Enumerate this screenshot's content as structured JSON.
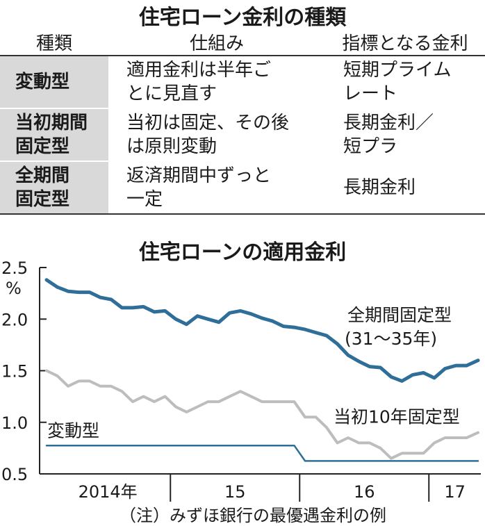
{
  "table": {
    "title": "住宅ローン金利の種類",
    "headers": [
      "種類",
      "仕組み",
      "指標となる金利"
    ],
    "rows": [
      {
        "type": [
          "変動型"
        ],
        "mechanism": [
          "適用金利は半年ご",
          "とに見直す"
        ],
        "index": [
          "短期プライム",
          "レート"
        ]
      },
      {
        "type": [
          "当初期間",
          "固定型"
        ],
        "mechanism": [
          "当初は固定、その後",
          "は原則変動"
        ],
        "index": [
          "長期金利／",
          "短プラ"
        ]
      },
      {
        "type": [
          "全期間",
          "固定型"
        ],
        "mechanism": [
          "返済期間中ずっと",
          "一定"
        ],
        "index": [
          "長期金利"
        ]
      }
    ]
  },
  "chart_data": {
    "type": "line",
    "title": "住宅ローンの適用金利",
    "ylabel": "%",
    "ylim": [
      0.5,
      2.5
    ],
    "yticks": [
      "2.5",
      "2.0",
      "1.5",
      "1.0",
      "0.5"
    ],
    "xticks": [
      "2014年",
      "15",
      "16",
      "17"
    ],
    "grid": false,
    "x": [
      "2014-01",
      "2014-02",
      "2014-03",
      "2014-04",
      "2014-05",
      "2014-06",
      "2014-07",
      "2014-08",
      "2014-09",
      "2014-10",
      "2014-11",
      "2014-12",
      "2015-01",
      "2015-02",
      "2015-03",
      "2015-04",
      "2015-05",
      "2015-06",
      "2015-07",
      "2015-08",
      "2015-09",
      "2015-10",
      "2015-11",
      "2015-12",
      "2016-01",
      "2016-02",
      "2016-03",
      "2016-04",
      "2016-05",
      "2016-06",
      "2016-07",
      "2016-08",
      "2016-09",
      "2016-10",
      "2016-11",
      "2016-12",
      "2017-01",
      "2017-02",
      "2017-03",
      "2017-04"
    ],
    "series": [
      {
        "name": "全期間固定型",
        "name_sub": "(31～35年)",
        "color": "#2e6e99",
        "values": [
          2.38,
          2.31,
          2.27,
          2.26,
          2.26,
          2.21,
          2.19,
          2.11,
          2.11,
          2.12,
          2.07,
          2.08,
          2.0,
          1.95,
          2.03,
          2.0,
          1.97,
          2.06,
          2.08,
          2.05,
          2.01,
          1.98,
          1.93,
          1.92,
          1.9,
          1.87,
          1.84,
          1.76,
          1.65,
          1.59,
          1.54,
          1.53,
          1.44,
          1.4,
          1.46,
          1.48,
          1.43,
          1.52,
          1.55,
          1.55
        ]
      },
      {
        "name": "当初10年固定型",
        "color": "#bdbdbd",
        "values": [
          1.5,
          1.45,
          1.35,
          1.4,
          1.4,
          1.35,
          1.35,
          1.3,
          1.2,
          1.25,
          1.2,
          1.25,
          1.15,
          1.1,
          1.15,
          1.2,
          1.2,
          1.25,
          1.3,
          1.25,
          1.2,
          1.2,
          1.2,
          1.2,
          1.05,
          1.05,
          0.95,
          0.8,
          0.85,
          0.8,
          0.8,
          0.75,
          0.65,
          0.7,
          0.7,
          0.7,
          0.8,
          0.85,
          0.85,
          0.85
        ]
      },
      {
        "name": "変動型",
        "color": "#2e6e99",
        "values": [
          0.775,
          0.775,
          0.775,
          0.775,
          0.775,
          0.775,
          0.775,
          0.775,
          0.775,
          0.775,
          0.775,
          0.775,
          0.775,
          0.775,
          0.775,
          0.775,
          0.775,
          0.775,
          0.775,
          0.775,
          0.775,
          0.775,
          0.775,
          0.775,
          0.625,
          0.625,
          0.625,
          0.625,
          0.625,
          0.625,
          0.625,
          0.625,
          0.625,
          0.625,
          0.625,
          0.625,
          0.625,
          0.625,
          0.625,
          0.625
        ]
      }
    ],
    "extra_points": {
      "全期間固定型_end": 1.6,
      "当初10年固定型_end": 0.9,
      "変動型_end": 0.625
    }
  },
  "note": "（注）みずほ銀行の最優遇金利の例"
}
